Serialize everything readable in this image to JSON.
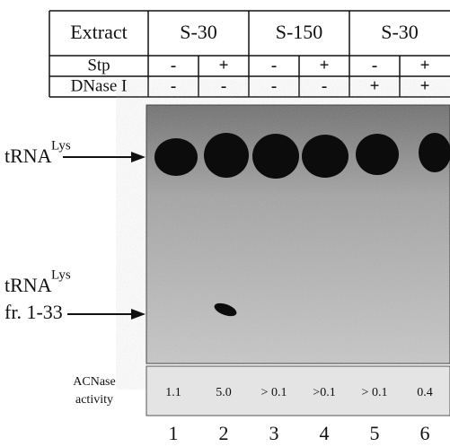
{
  "table": {
    "rows": [
      {
        "label": "Extract",
        "cells": [
          "S-30",
          "S-150",
          "S-30"
        ]
      },
      {
        "label": "Stp",
        "cells": [
          "-",
          "+",
          "-",
          "+",
          "-",
          "+"
        ]
      },
      {
        "label": "DNase I",
        "cells": [
          "-",
          "-",
          "-",
          "-",
          "+",
          "+"
        ]
      }
    ]
  },
  "gel_labels": [
    {
      "name": "tRNA",
      "superscript": "Lys"
    },
    {
      "name": "tRNA",
      "superscript": "Lys",
      "suffix": "fr. 1-33"
    }
  ],
  "activity": {
    "label": [
      "ACNase",
      "activity"
    ],
    "values": [
      "1.1",
      "5.0",
      "> 0.1",
      ">0.1",
      "> 0.1",
      "0.4"
    ]
  },
  "lanes": [
    "1",
    "2",
    "3",
    "4",
    "5",
    "6"
  ]
}
